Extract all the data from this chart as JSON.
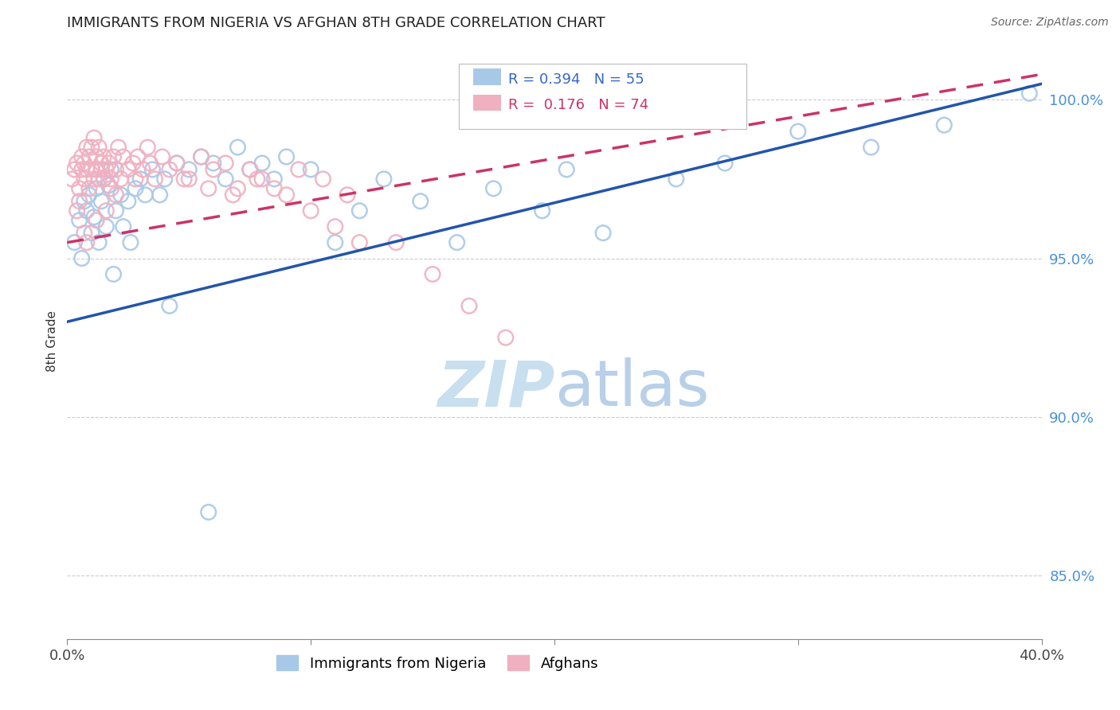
{
  "title": "IMMIGRANTS FROM NIGERIA VS AFGHAN 8TH GRADE CORRELATION CHART",
  "source": "Source: ZipAtlas.com",
  "ylabel": "8th Grade",
  "legend_label_blue": "Immigrants from Nigeria",
  "legend_label_pink": "Afghans",
  "R_blue": 0.394,
  "N_blue": 55,
  "R_pink": 0.176,
  "N_pink": 74,
  "xlim": [
    0.0,
    40.0
  ],
  "ylim": [
    83.0,
    101.8
  ],
  "yticks": [
    85.0,
    90.0,
    95.0,
    100.0
  ],
  "ytick_labels": [
    "85.0%",
    "90.0%",
    "95.0%",
    "100.0%"
  ],
  "xtick_labels": [
    "0.0%",
    "",
    "",
    "",
    "40.0%"
  ],
  "color_blue": "#a8c8e8",
  "color_pink": "#f0b0c0",
  "color_blue_line": "#2255aa",
  "color_pink_line": "#cc3366",
  "watermark_zip": "ZIP",
  "watermark_atlas": "atlas",
  "watermark_color_zip": "#c8dff0",
  "watermark_color_atlas": "#b8d0e8",
  "blue_x": [
    0.3,
    0.5,
    0.6,
    0.7,
    0.8,
    0.9,
    1.0,
    1.1,
    1.2,
    1.3,
    1.4,
    1.5,
    1.6,
    1.7,
    1.8,
    2.0,
    2.2,
    2.5,
    2.8,
    3.0,
    3.2,
    3.5,
    4.0,
    4.5,
    5.0,
    5.5,
    6.0,
    6.5,
    7.0,
    7.5,
    8.0,
    8.5,
    9.0,
    10.0,
    11.0,
    12.0,
    13.0,
    14.5,
    16.0,
    17.5,
    19.5,
    20.5,
    22.0,
    25.0,
    27.0,
    30.0,
    33.0,
    36.0,
    39.5,
    1.9,
    2.3,
    2.6,
    3.8,
    4.2,
    5.8
  ],
  "blue_y": [
    95.5,
    96.2,
    95.0,
    96.8,
    96.5,
    97.0,
    95.8,
    96.3,
    97.2,
    95.5,
    96.8,
    97.5,
    96.0,
    97.3,
    97.8,
    96.5,
    97.0,
    96.8,
    97.2,
    97.5,
    97.0,
    97.8,
    97.5,
    98.0,
    97.8,
    98.2,
    98.0,
    97.5,
    98.5,
    97.8,
    98.0,
    97.5,
    98.2,
    97.8,
    95.5,
    96.5,
    97.5,
    96.8,
    95.5,
    97.2,
    96.5,
    97.8,
    95.8,
    97.5,
    98.0,
    99.0,
    98.5,
    99.2,
    100.2,
    94.5,
    96.0,
    95.5,
    97.0,
    93.5,
    87.0
  ],
  "pink_x": [
    0.2,
    0.3,
    0.4,
    0.5,
    0.6,
    0.6,
    0.7,
    0.7,
    0.8,
    0.8,
    0.9,
    0.9,
    1.0,
    1.0,
    1.1,
    1.1,
    1.2,
    1.2,
    1.3,
    1.3,
    1.4,
    1.4,
    1.5,
    1.5,
    1.6,
    1.7,
    1.8,
    1.9,
    2.0,
    2.1,
    2.2,
    2.3,
    2.5,
    2.7,
    2.9,
    3.1,
    3.3,
    3.6,
    3.9,
    4.2,
    4.5,
    5.0,
    5.5,
    6.0,
    6.5,
    7.0,
    7.5,
    8.0,
    9.0,
    10.0,
    11.0,
    12.0,
    13.5,
    15.0,
    16.5,
    18.0,
    5.8,
    4.8,
    6.8,
    7.8,
    8.5,
    9.5,
    10.5,
    11.5,
    2.8,
    3.4,
    1.6,
    0.5,
    0.8,
    1.2,
    2.0,
    1.8,
    0.7,
    0.4
  ],
  "pink_y": [
    97.5,
    97.8,
    98.0,
    97.2,
    97.8,
    98.2,
    97.5,
    98.0,
    97.8,
    98.5,
    97.2,
    98.2,
    97.8,
    98.5,
    97.5,
    98.8,
    97.8,
    98.2,
    97.5,
    98.5,
    97.8,
    98.0,
    97.5,
    98.2,
    97.8,
    98.0,
    97.5,
    98.2,
    97.8,
    98.5,
    97.5,
    98.2,
    97.8,
    98.0,
    98.2,
    97.8,
    98.5,
    97.5,
    98.2,
    97.8,
    98.0,
    97.5,
    98.2,
    97.8,
    98.0,
    97.2,
    97.8,
    97.5,
    97.0,
    96.5,
    96.0,
    95.5,
    95.5,
    94.5,
    93.5,
    92.5,
    97.2,
    97.5,
    97.0,
    97.5,
    97.2,
    97.8,
    97.5,
    97.0,
    97.5,
    98.0,
    96.5,
    96.8,
    95.5,
    96.2,
    97.0,
    97.2,
    95.8,
    96.5
  ],
  "reg_blue_x0": 0.0,
  "reg_blue_y0": 93.0,
  "reg_blue_x1": 40.0,
  "reg_blue_y1": 100.5,
  "reg_pink_x0": 0.0,
  "reg_pink_y0": 95.5,
  "reg_pink_x1": 40.0,
  "reg_pink_y1": 100.8
}
